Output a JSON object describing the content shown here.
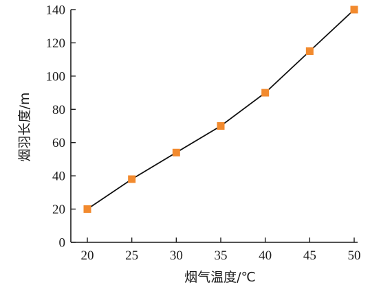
{
  "chart_data": {
    "type": "line",
    "title": "",
    "xlabel": "烟气温度/℃",
    "ylabel": "烟羽长度/m",
    "x": [
      20,
      25,
      30,
      35,
      40,
      45,
      50
    ],
    "series": [
      {
        "values": [
          20,
          38,
          54,
          70,
          90,
          115,
          140
        ],
        "color": "#f28a2e",
        "marker": "square",
        "line_color": "#111111"
      }
    ],
    "xlim": [
      20,
      50
    ],
    "ylim": [
      0,
      140
    ],
    "xticks": [
      "20",
      "25",
      "30",
      "35",
      "40",
      "45",
      "50"
    ],
    "yticks": [
      "0",
      "20",
      "40",
      "60",
      "80",
      "100",
      "120",
      "140"
    ],
    "grid": false,
    "legend": "none"
  }
}
